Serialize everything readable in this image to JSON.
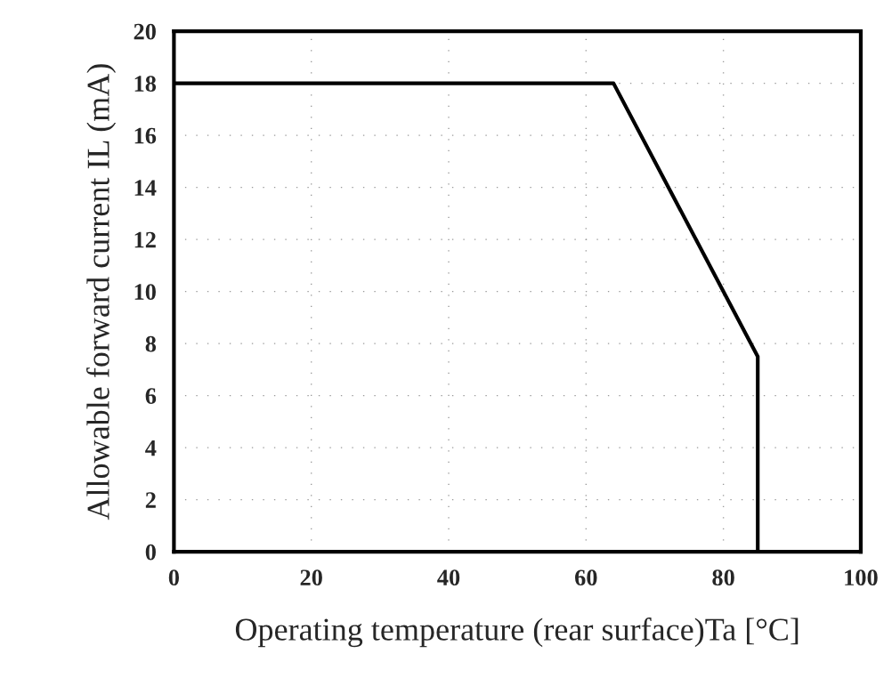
{
  "chart_data": {
    "type": "line",
    "xlabel": "Operating temperature (rear surface)Ta [°C]",
    "ylabel": "Allowable forward current IL (mA)",
    "x": [
      0,
      64,
      85,
      85
    ],
    "series": [
      {
        "color": "#000000",
        "values": [
          18,
          18,
          7.5,
          0
        ]
      }
    ],
    "xlim": [
      0,
      100
    ],
    "xticks": [
      0,
      20,
      40,
      60,
      80,
      100
    ],
    "ylim": [
      0,
      20
    ],
    "yticks": [
      0,
      2,
      4,
      6,
      8,
      10,
      12,
      14,
      16,
      18,
      20
    ],
    "grid": true,
    "marker": "none",
    "line_style": "solid"
  }
}
